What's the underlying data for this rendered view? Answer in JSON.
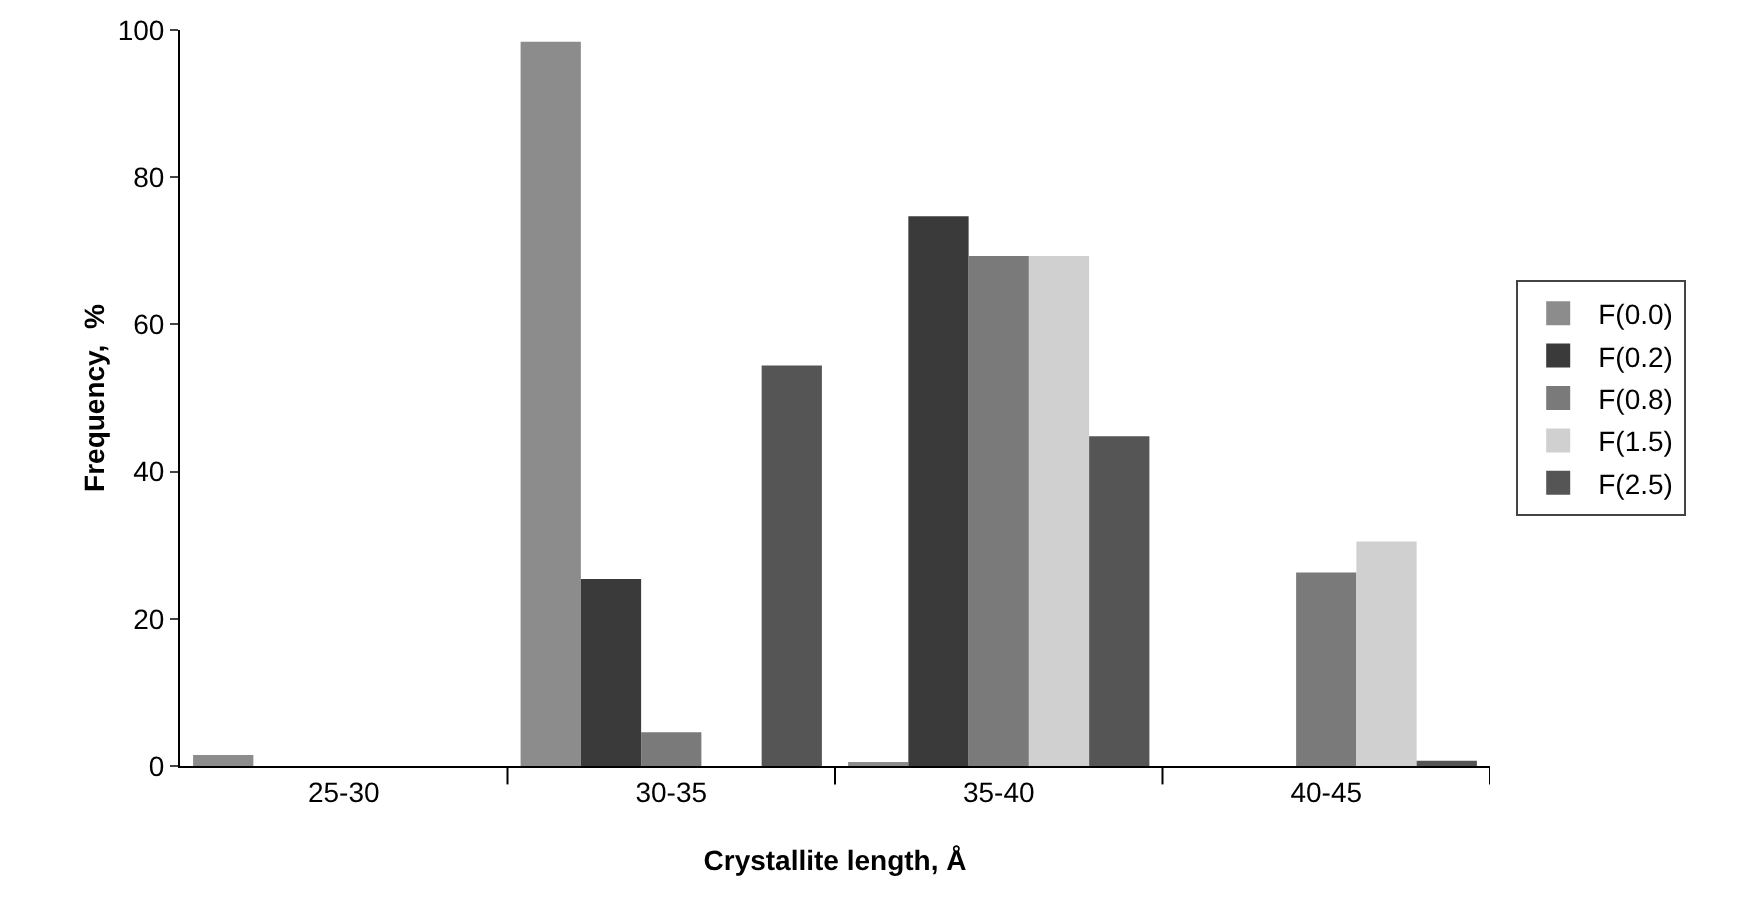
{
  "chart_data": {
    "type": "bar",
    "xlabel": "Crystallite length, Å",
    "ylabel": "Frequency,  %",
    "categories": [
      "25-30",
      "30-35",
      "35-40",
      "40-45"
    ],
    "series": [
      {
        "name": "F(0.0)",
        "color": "#8c8c8c",
        "values": [
          1.5,
          98.4,
          0.3,
          null
        ]
      },
      {
        "name": "F(0.2)",
        "color": "#3a3a3a",
        "values": [
          null,
          25.4,
          74.7,
          null
        ]
      },
      {
        "name": "F(0.8)",
        "color": "#7a7a7a",
        "values": [
          null,
          4.6,
          69.3,
          26.3
        ]
      },
      {
        "name": "F(1.5)",
        "color": "#d0d0d0",
        "values": [
          null,
          null,
          69.3,
          30.5
        ]
      },
      {
        "name": "F(2.5)",
        "color": "#555555",
        "values": [
          null,
          54.4,
          44.8,
          0.7
        ]
      }
    ],
    "ylim": [
      0,
      100
    ],
    "yticks": [
      0,
      20,
      40,
      60,
      80,
      100
    ],
    "grid": false,
    "legend": "right"
  }
}
